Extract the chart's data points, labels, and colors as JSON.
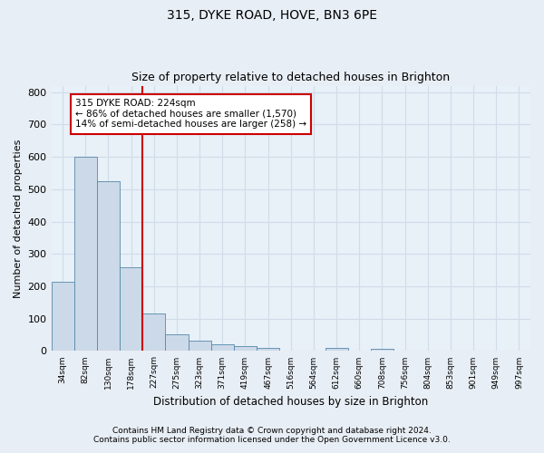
{
  "title": "315, DYKE ROAD, HOVE, BN3 6PE",
  "subtitle": "Size of property relative to detached houses in Brighton",
  "xlabel": "Distribution of detached houses by size in Brighton",
  "ylabel": "Number of detached properties",
  "bar_color": "#ccd9e8",
  "bar_edge_color": "#5588aa",
  "vline_color": "#cc0000",
  "vline_x": 3.5,
  "annotation_box_color": "#cc0000",
  "annotation_text_line1": "315 DYKE ROAD: 224sqm",
  "annotation_text_line2": "← 86% of detached houses are smaller (1,570)",
  "annotation_text_line3": "14% of semi-detached houses are larger (258) →",
  "categories": [
    "34sqm",
    "82sqm",
    "130sqm",
    "178sqm",
    "227sqm",
    "275sqm",
    "323sqm",
    "371sqm",
    "419sqm",
    "467sqm",
    "516sqm",
    "564sqm",
    "612sqm",
    "660sqm",
    "708sqm",
    "756sqm",
    "804sqm",
    "853sqm",
    "901sqm",
    "949sqm",
    "997sqm"
  ],
  "values": [
    215,
    600,
    525,
    258,
    115,
    52,
    32,
    20,
    15,
    10,
    0,
    0,
    10,
    0,
    8,
    0,
    0,
    0,
    0,
    0,
    0
  ],
  "ylim": [
    0,
    820
  ],
  "yticks": [
    0,
    100,
    200,
    300,
    400,
    500,
    600,
    700,
    800
  ],
  "footer_line1": "Contains HM Land Registry data © Crown copyright and database right 2024.",
  "footer_line2": "Contains public sector information licensed under the Open Government Licence v3.0.",
  "background_color": "#e8eef5",
  "plot_background": "#e8f0f8",
  "grid_color": "#d0dce8",
  "title_fontsize": 10,
  "subtitle_fontsize": 9,
  "footer_fontsize": 6.5,
  "annotation_fontsize": 7.5,
  "ylabel_fontsize": 8,
  "xlabel_fontsize": 8.5
}
